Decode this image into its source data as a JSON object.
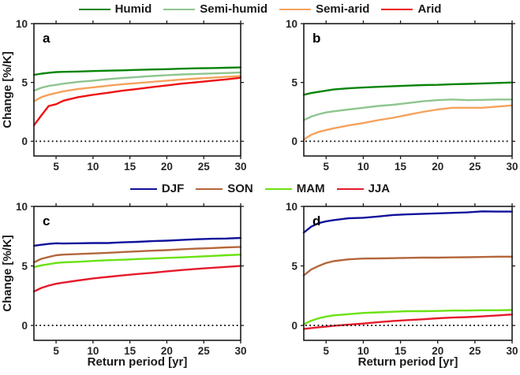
{
  "figure": {
    "ylabel": "Change [%/K]",
    "xlabel": "Return period [yr]",
    "background": "#ffffff",
    "frame_color": "#1a1a1a",
    "tick_label_color": "#262626",
    "zero_line_color": "#141414"
  },
  "legends": [
    {
      "id": "climate-zones",
      "items": [
        {
          "label": "Humid",
          "color": "#088408"
        },
        {
          "label": "Semi-humid",
          "color": "#8fc58f"
        },
        {
          "label": "Semi-arid",
          "color": "#f4a25c"
        },
        {
          "label": "Arid",
          "color": "#ee1111"
        }
      ]
    },
    {
      "id": "seasons",
      "items": [
        {
          "label": "DJF",
          "color": "#10109c"
        },
        {
          "label": "SON",
          "color": "#b4663c"
        },
        {
          "label": "MAM",
          "color": "#6ae213"
        },
        {
          "label": "JJA",
          "color": "#e51a2b"
        }
      ]
    }
  ],
  "chart_data": [
    {
      "id": "a",
      "type": "line",
      "panel_label": "a",
      "xlim": [
        2,
        30
      ],
      "ylim": [
        -1.25,
        10
      ],
      "xticks": [
        5,
        10,
        15,
        20,
        25,
        30
      ],
      "yticks": [
        0,
        5,
        10
      ],
      "zero_line": true,
      "xlabel": "",
      "ylabel": "Change [%/K]",
      "x": [
        2,
        3,
        4,
        5,
        6,
        8,
        10,
        12,
        14,
        16,
        18,
        20,
        22,
        24,
        26,
        28,
        30
      ],
      "series": [
        {
          "name": "Humid",
          "color": "#088408",
          "values": [
            5.65,
            5.75,
            5.82,
            5.88,
            5.9,
            5.93,
            5.97,
            6.0,
            6.03,
            6.07,
            6.1,
            6.13,
            6.17,
            6.2,
            6.22,
            6.25,
            6.28
          ]
        },
        {
          "name": "Semi-humid",
          "color": "#8fc58f",
          "values": [
            4.3,
            4.55,
            4.7,
            4.8,
            4.9,
            5.05,
            5.15,
            5.28,
            5.38,
            5.46,
            5.55,
            5.62,
            5.68,
            5.72,
            5.76,
            5.8,
            5.85
          ]
        },
        {
          "name": "Semi-arid",
          "color": "#f4a25c",
          "values": [
            3.4,
            3.75,
            3.95,
            4.1,
            4.25,
            4.45,
            4.58,
            4.72,
            4.85,
            4.95,
            5.05,
            5.15,
            5.25,
            5.33,
            5.4,
            5.47,
            5.55
          ]
        },
        {
          "name": "Arid",
          "color": "#ee1111",
          "values": [
            1.35,
            2.2,
            3.0,
            3.15,
            3.45,
            3.75,
            3.95,
            4.12,
            4.3,
            4.45,
            4.6,
            4.75,
            4.9,
            5.02,
            5.14,
            5.26,
            5.4
          ]
        }
      ]
    },
    {
      "id": "b",
      "type": "line",
      "panel_label": "b",
      "xlim": [
        2,
        30
      ],
      "ylim": [
        -1.25,
        10
      ],
      "xticks": [
        5,
        10,
        15,
        20,
        25,
        30
      ],
      "yticks": [
        0,
        5,
        10
      ],
      "zero_line": true,
      "xlabel": "",
      "ylabel": "",
      "x": [
        2,
        3,
        4,
        5,
        6,
        8,
        10,
        12,
        14,
        16,
        18,
        20,
        22,
        24,
        26,
        28,
        30
      ],
      "series": [
        {
          "name": "Humid",
          "color": "#088408",
          "values": [
            3.95,
            4.1,
            4.2,
            4.3,
            4.4,
            4.5,
            4.57,
            4.63,
            4.68,
            4.73,
            4.78,
            4.8,
            4.85,
            4.88,
            4.92,
            4.96,
            5.0
          ]
        },
        {
          "name": "Semi-humid",
          "color": "#8fc58f",
          "values": [
            1.8,
            2.1,
            2.3,
            2.45,
            2.55,
            2.7,
            2.85,
            3.0,
            3.1,
            3.25,
            3.4,
            3.5,
            3.55,
            3.5,
            3.52,
            3.55,
            3.55
          ]
        },
        {
          "name": "Semi-arid",
          "color": "#f4a25c",
          "values": [
            0.15,
            0.55,
            0.8,
            0.95,
            1.1,
            1.35,
            1.55,
            1.8,
            2.0,
            2.25,
            2.5,
            2.7,
            2.85,
            2.85,
            2.85,
            2.95,
            3.05
          ]
        }
      ]
    },
    {
      "id": "c",
      "type": "line",
      "panel_label": "c",
      "xlim": [
        2,
        30
      ],
      "ylim": [
        -1.25,
        10
      ],
      "xticks": [
        5,
        10,
        15,
        20,
        25,
        30
      ],
      "yticks": [
        0,
        5,
        10
      ],
      "zero_line": true,
      "xlabel": "Return period [yr]",
      "ylabel": "Change [%/K]",
      "x": [
        2,
        3,
        4,
        5,
        6,
        8,
        10,
        12,
        14,
        16,
        18,
        20,
        22,
        24,
        26,
        28,
        30
      ],
      "series": [
        {
          "name": "DJF",
          "color": "#10109c",
          "values": [
            6.7,
            6.78,
            6.85,
            6.9,
            6.88,
            6.9,
            6.92,
            6.92,
            6.98,
            7.02,
            7.08,
            7.12,
            7.18,
            7.24,
            7.28,
            7.3,
            7.35
          ]
        },
        {
          "name": "SON",
          "color": "#b4663c",
          "values": [
            5.3,
            5.6,
            5.75,
            5.9,
            5.95,
            6.0,
            6.05,
            6.1,
            6.17,
            6.22,
            6.28,
            6.33,
            6.4,
            6.45,
            6.5,
            6.55,
            6.6
          ]
        },
        {
          "name": "MAM",
          "color": "#6ae213",
          "values": [
            4.9,
            5.05,
            5.15,
            5.25,
            5.3,
            5.35,
            5.42,
            5.48,
            5.52,
            5.58,
            5.62,
            5.68,
            5.72,
            5.78,
            5.84,
            5.9,
            5.95
          ]
        },
        {
          "name": "JJA",
          "color": "#e51a2b",
          "values": [
            2.85,
            3.15,
            3.35,
            3.5,
            3.6,
            3.78,
            3.95,
            4.08,
            4.2,
            4.32,
            4.42,
            4.55,
            4.65,
            4.75,
            4.83,
            4.92,
            5.0
          ]
        }
      ]
    },
    {
      "id": "d",
      "type": "line",
      "panel_label": "d",
      "xlim": [
        2,
        30
      ],
      "ylim": [
        -1.25,
        10
      ],
      "xticks": [
        5,
        10,
        15,
        20,
        25,
        30
      ],
      "yticks": [
        0,
        5,
        10
      ],
      "zero_line": true,
      "xlabel": "Return period [yr]",
      "ylabel": "",
      "x": [
        2,
        3,
        4,
        5,
        6,
        8,
        10,
        12,
        14,
        16,
        18,
        20,
        22,
        24,
        26,
        28,
        30
      ],
      "series": [
        {
          "name": "DJF",
          "color": "#10109c",
          "values": [
            7.8,
            8.3,
            8.6,
            8.75,
            8.85,
            9.0,
            9.05,
            9.15,
            9.28,
            9.33,
            9.38,
            9.42,
            9.46,
            9.5,
            9.58,
            9.56,
            9.56
          ]
        },
        {
          "name": "SON",
          "color": "#b4663c",
          "values": [
            4.2,
            4.7,
            5.0,
            5.25,
            5.4,
            5.55,
            5.62,
            5.63,
            5.65,
            5.68,
            5.7,
            5.7,
            5.72,
            5.73,
            5.75,
            5.78,
            5.78
          ]
        },
        {
          "name": "MAM",
          "color": "#6ae213",
          "values": [
            0.1,
            0.4,
            0.6,
            0.75,
            0.85,
            0.95,
            1.05,
            1.1,
            1.15,
            1.2,
            1.2,
            1.22,
            1.25,
            1.25,
            1.28,
            1.28,
            1.3
          ]
        },
        {
          "name": "JJA",
          "color": "#e51a2b",
          "values": [
            -0.3,
            -0.22,
            -0.15,
            -0.1,
            -0.03,
            0.07,
            0.16,
            0.28,
            0.38,
            0.45,
            0.52,
            0.6,
            0.66,
            0.7,
            0.76,
            0.84,
            0.92
          ]
        }
      ]
    }
  ]
}
